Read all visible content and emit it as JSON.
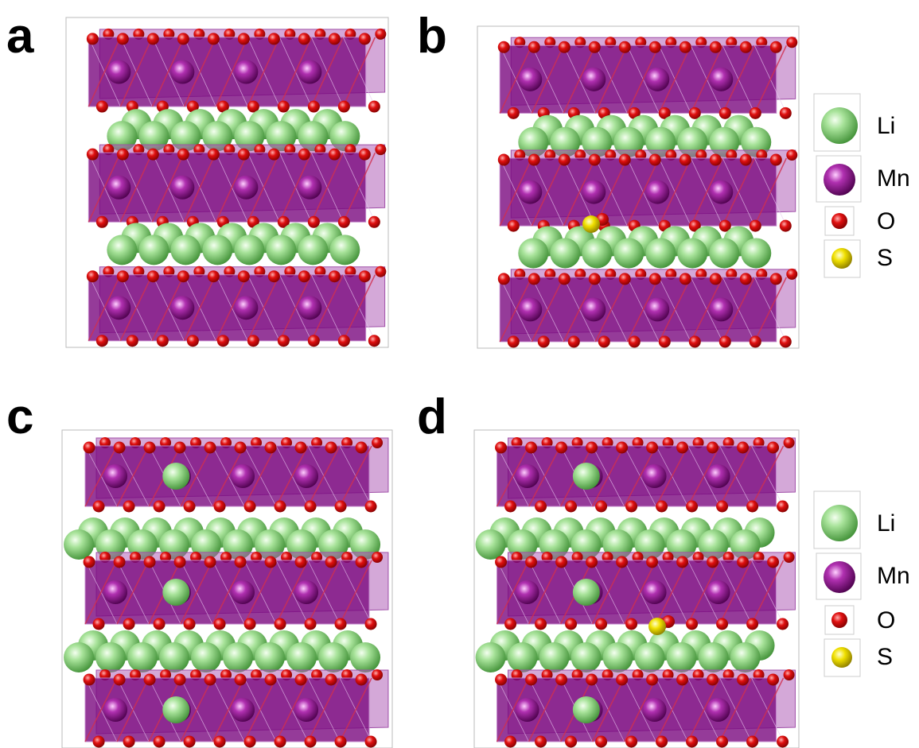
{
  "panels": [
    {
      "label": "a"
    },
    {
      "label": "b"
    },
    {
      "label": "c"
    },
    {
      "label": "d"
    }
  ],
  "legends": [
    {
      "items": [
        {
          "label": "Li"
        },
        {
          "label": "Mn"
        },
        {
          "label": "O"
        },
        {
          "label": "S"
        }
      ]
    },
    {
      "items": [
        {
          "label": "Li"
        },
        {
          "label": "Mn"
        },
        {
          "label": "O"
        },
        {
          "label": "S"
        }
      ]
    }
  ]
}
